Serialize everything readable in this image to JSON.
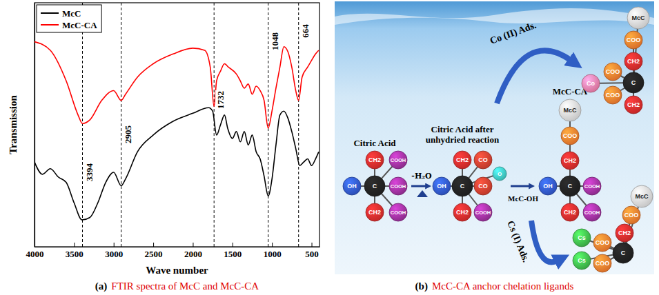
{
  "chart_data": {
    "type": "line",
    "label": "(a)",
    "title": "FTIR spectra of McC and McC-CA",
    "x_label": "Wave number",
    "y_label": "Transmission",
    "xlim": [
      4000,
      400
    ],
    "xticks": [
      4000,
      3500,
      3000,
      2500,
      2000,
      1500,
      1000,
      500
    ],
    "ylim": [
      0,
      100
    ],
    "tick_labels": "x",
    "legend": "upper left",
    "annotations": [
      3394,
      2905,
      1732,
      1048,
      664
    ],
    "series": [
      {
        "name": "McC",
        "color": "#000000",
        "x": [
          4000,
          3900,
          3800,
          3700,
          3600,
          3500,
          3400,
          3300,
          3200,
          3100,
          3000,
          2905,
          2850,
          2700,
          2500,
          2250,
          2000,
          1800,
          1750,
          1700,
          1650,
          1600,
          1560,
          1500,
          1450,
          1400,
          1350,
          1300,
          1250,
          1200,
          1150,
          1100,
          1048,
          1000,
          950,
          900,
          850,
          800,
          750,
          700,
          650,
          600,
          550,
          500,
          450,
          410
        ],
        "values": [
          34.7,
          29.7,
          32,
          28.6,
          26.4,
          18,
          11,
          12,
          18,
          26.4,
          30.5,
          25,
          27.8,
          38.9,
          45.8,
          51.4,
          54.7,
          57,
          55.6,
          45.8,
          50,
          54,
          48.6,
          44.4,
          47.2,
          43,
          47.2,
          41.7,
          45.8,
          38.9,
          36,
          29,
          20.8,
          27.8,
          41.7,
          54,
          55.6,
          52.8,
          47.2,
          40.3,
          33.3,
          34.7,
          36,
          33.3,
          36,
          38.9
        ]
      },
      {
        "name": "McC-CA",
        "color": "#ff0000",
        "x": [
          4000,
          3800,
          3600,
          3450,
          3394,
          3300,
          3150,
          3000,
          2905,
          2850,
          2700,
          2500,
          2250,
          2000,
          1850,
          1780,
          1732,
          1700,
          1650,
          1600,
          1550,
          1450,
          1400,
          1350,
          1300,
          1250,
          1200,
          1150,
          1100,
          1048,
          1000,
          950,
          900,
          850,
          800,
          750,
          700,
          664,
          620,
          550,
          500,
          450,
          410
        ],
        "values": [
          84,
          80.5,
          68,
          54,
          50.5,
          52,
          60,
          64,
          60,
          62.5,
          69.5,
          75,
          79,
          81.4,
          80.5,
          73.6,
          57.5,
          68,
          72,
          75,
          73.6,
          70.8,
          68,
          65,
          66.7,
          62.5,
          65.8,
          64,
          60,
          48.6,
          55.6,
          65,
          73.6,
          82,
          80,
          73.6,
          64,
          60,
          69.5,
          73.6,
          76.4,
          79,
          80.5
        ]
      }
    ]
  },
  "diagram": {
    "label": "(b)",
    "title": "McC-CA anchor chelation ligands",
    "steps": [
      "-H₂O",
      "McC-OH"
    ],
    "adsorption": [
      "Co (II) Ads.",
      "Cs (I) Ads."
    ],
    "molecules": [
      {
        "name_lines": [
          "Citric Acid"
        ],
        "atoms": [
          "CH2",
          "COOH",
          "OH",
          "C",
          "COOH",
          "CH2",
          "COOH"
        ]
      },
      {
        "name_lines": [
          "Citric Acid after",
          "unhydried reaction"
        ],
        "atoms": [
          "CH2",
          "CO",
          "OH",
          "C",
          "CO",
          "O",
          "CH2",
          "COOH"
        ]
      },
      {
        "name_lines": [
          "McC-CA"
        ],
        "atoms": [
          "McC",
          "COO",
          "CH2",
          "OH",
          "C",
          "COOH",
          "CH2",
          "COOH"
        ]
      },
      {
        "atoms": [
          "McC",
          "COO",
          "CH2",
          "C",
          "COO",
          "Co",
          "COO",
          "CH2"
        ]
      },
      {
        "atoms": [
          "McC",
          "COO",
          "CH2",
          "C",
          "COO",
          "Cs",
          "COO",
          "Cs"
        ]
      }
    ]
  }
}
